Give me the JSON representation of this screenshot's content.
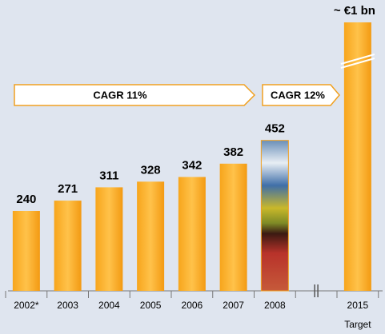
{
  "chart_data": {
    "type": "bar",
    "categories": [
      "2002*",
      "2003",
      "2004",
      "2005",
      "2006",
      "2007",
      "2008",
      null,
      "2015"
    ],
    "category_sublabels": [
      null,
      null,
      null,
      null,
      null,
      null,
      null,
      null,
      "Target"
    ],
    "values": [
      240,
      271,
      311,
      328,
      342,
      382,
      452,
      null,
      1000
    ],
    "value_labels": [
      "240",
      "271",
      "311",
      "328",
      "342",
      "382",
      "452",
      null,
      "~ €1 bn"
    ],
    "color": "#f7a51c",
    "annotations": [
      "CAGR 11%",
      "CAGR 12%"
    ]
  }
}
